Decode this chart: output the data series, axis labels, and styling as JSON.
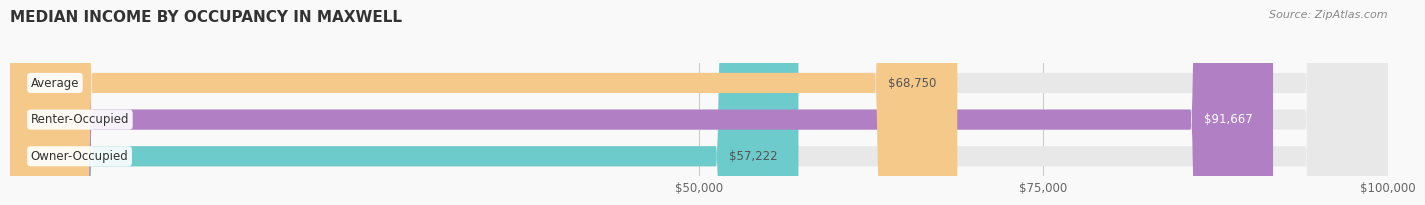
{
  "title": "MEDIAN INCOME BY OCCUPANCY IN MAXWELL",
  "source": "Source: ZipAtlas.com",
  "categories": [
    "Owner-Occupied",
    "Renter-Occupied",
    "Average"
  ],
  "values": [
    57222,
    91667,
    68750
  ],
  "bar_colors": [
    "#6dcbcb",
    "#b07fc4",
    "#f5c98a"
  ],
  "bar_bg_color": "#e8e8e8",
  "value_labels": [
    "$57,222",
    "$91,667",
    "$68,750"
  ],
  "value_label_colors": [
    "#555555",
    "#ffffff",
    "#555555"
  ],
  "xlim": [
    0,
    100000
  ],
  "xtick_positions": [
    50000,
    75000,
    100000
  ],
  "xtick_labels": [
    "$50,000",
    "$75,000",
    "$100,000"
  ],
  "background_color": "#f9f9f9",
  "title_fontsize": 11,
  "bar_height": 0.55,
  "fig_width": 14.06,
  "fig_height": 1.96
}
